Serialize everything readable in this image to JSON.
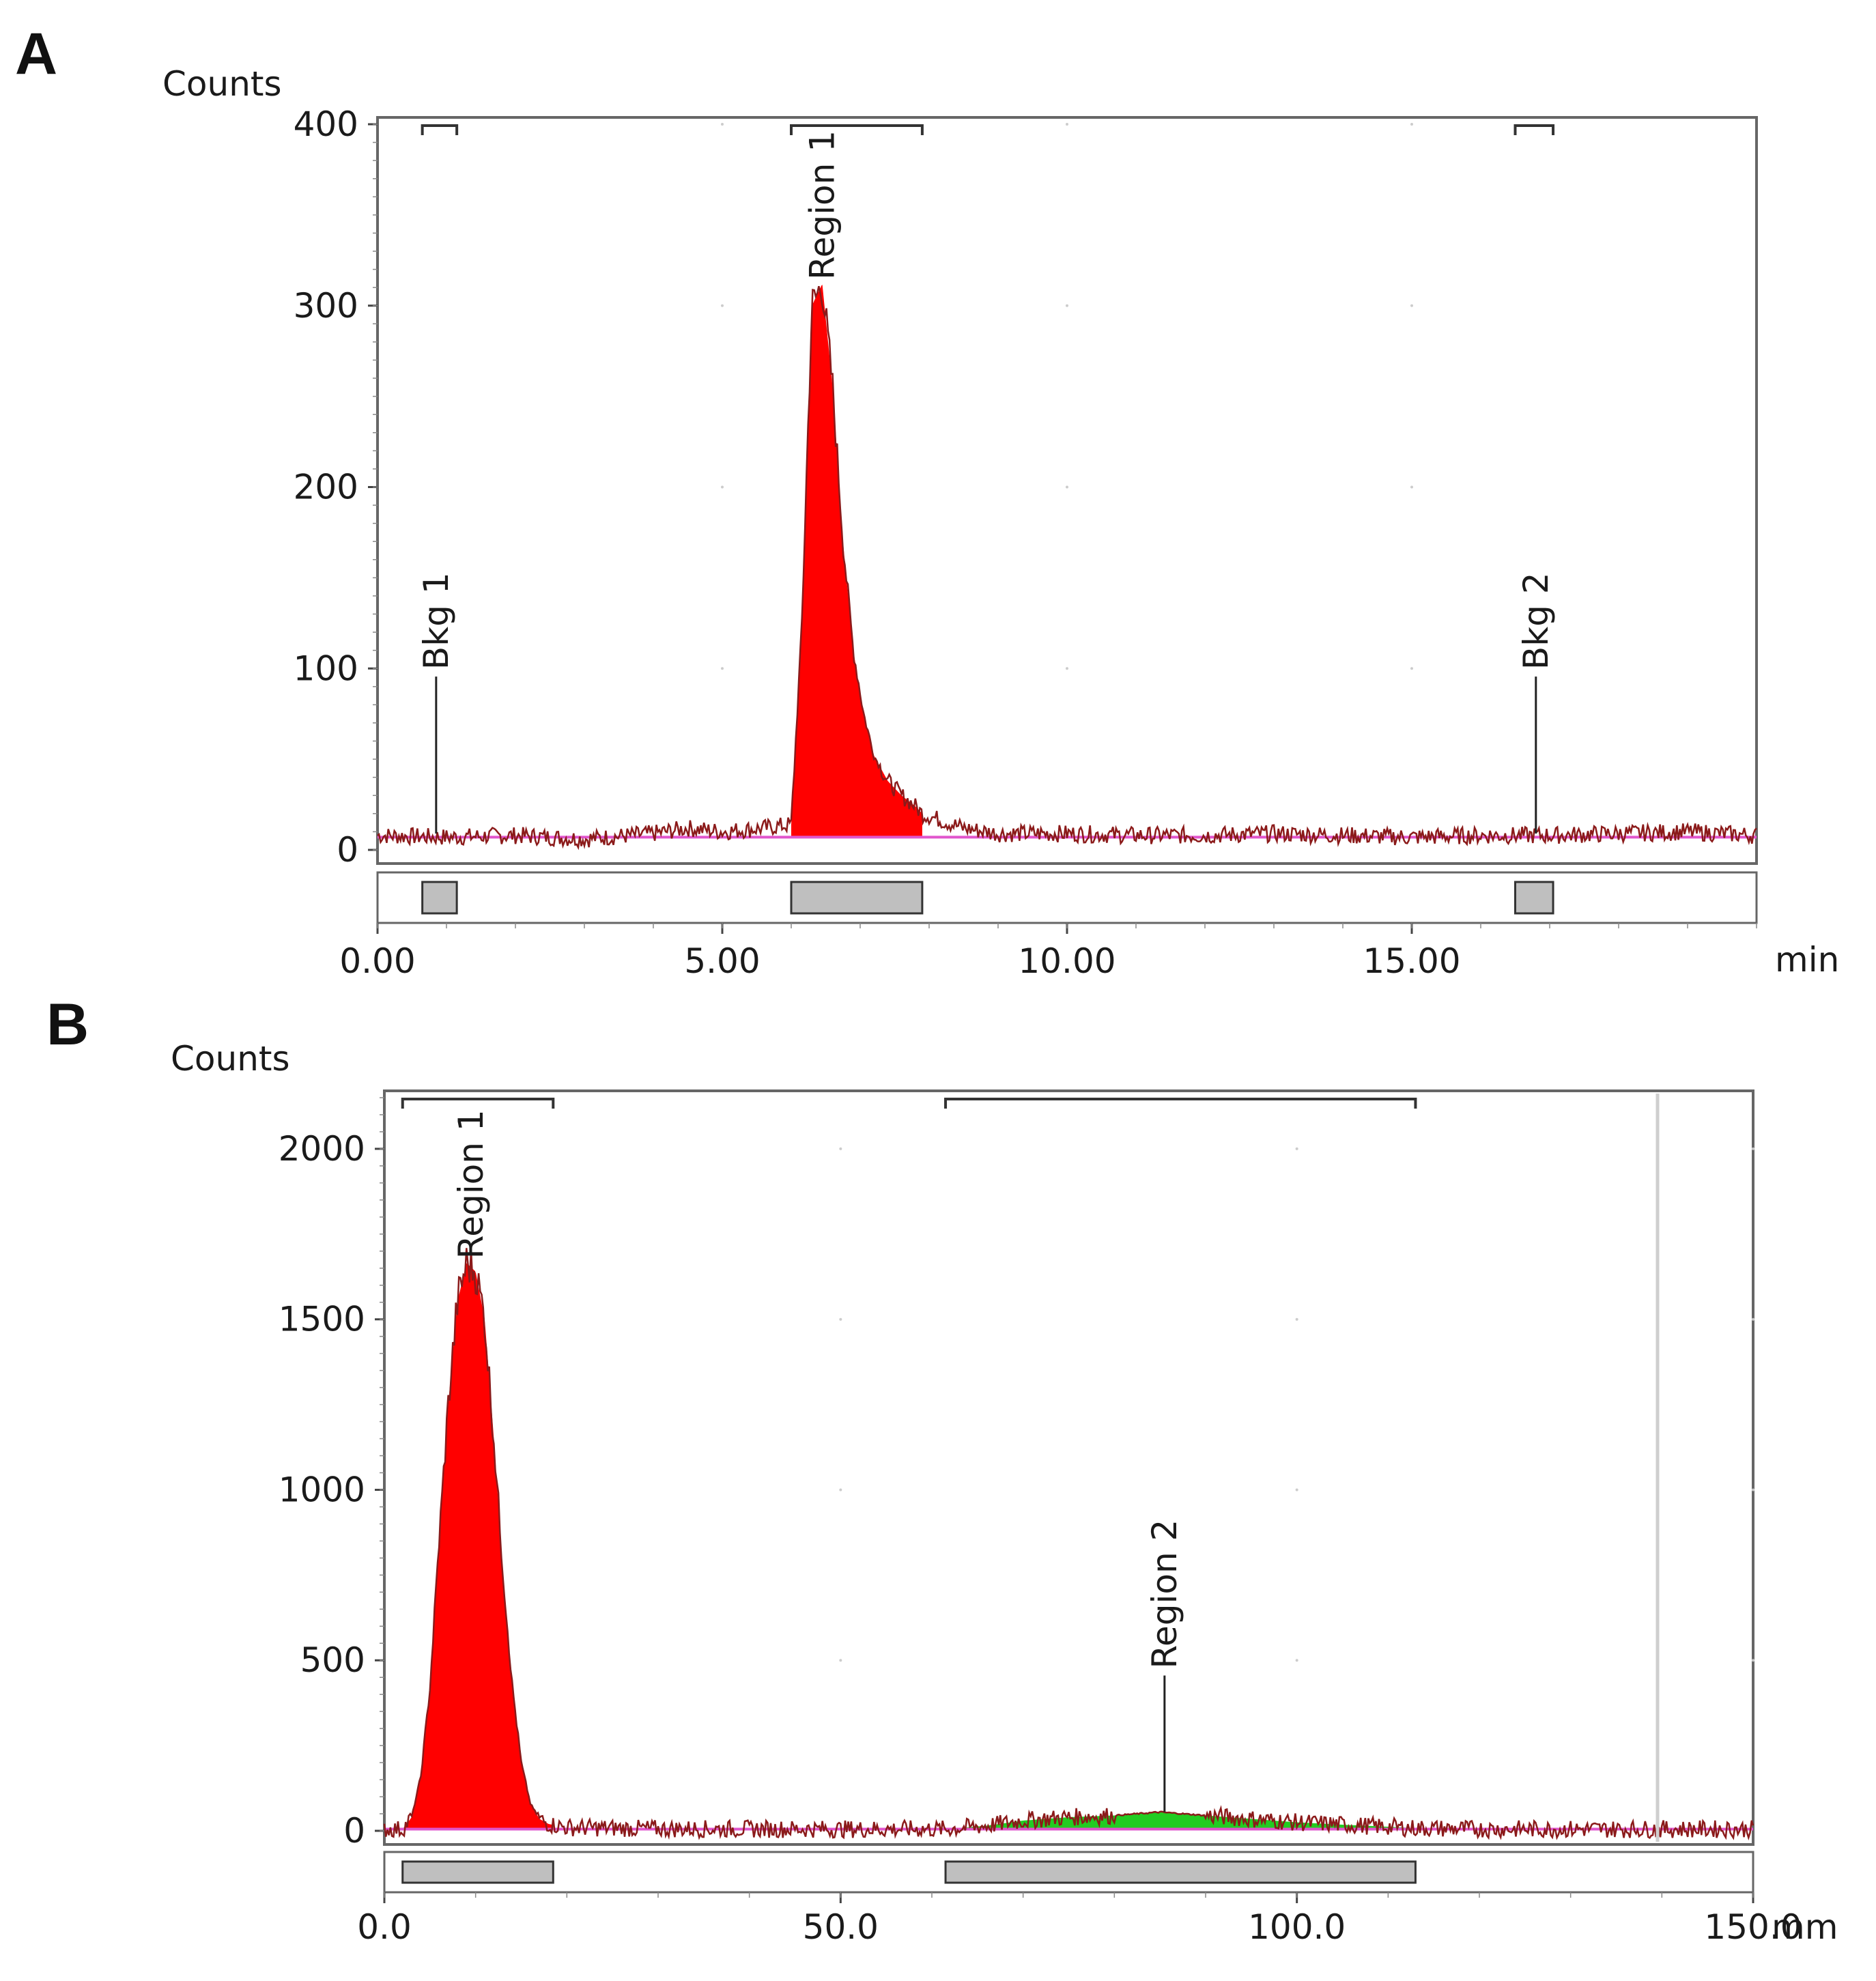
{
  "panels": [
    {
      "letter": "A"
    },
    {
      "letter": "B"
    }
  ],
  "chart_data": [
    {
      "type": "area",
      "panel": "A",
      "title": "",
      "ylabel": "Counts",
      "xlabel": "min",
      "xlim": [
        0,
        20
      ],
      "ylim": [
        0,
        400
      ],
      "x_ticks": [
        0,
        5,
        10,
        15
      ],
      "x_tick_labels": [
        "0.00",
        "5.00",
        "10.00",
        "15.00"
      ],
      "y_ticks": [
        0,
        100,
        200,
        300,
        400
      ],
      "y_tick_labels": [
        "0",
        "100",
        "200",
        "300",
        "400"
      ],
      "baseline": 7,
      "regions": [
        {
          "name": "Region 1",
          "start": 6.0,
          "end": 7.9,
          "color": "#ff0000",
          "label_x": 6.45,
          "peak": 312
        }
      ],
      "background_markers": [
        {
          "name": "Bkg 1",
          "start": 0.65,
          "end": 1.15,
          "label_x": 0.85
        },
        {
          "name": "Bkg 2",
          "start": 16.5,
          "end": 17.05,
          "label_x": 16.8
        }
      ],
      "series": [
        {
          "name": "trace",
          "color": "#8b1a1a",
          "x": [
            0,
            1,
            2,
            3,
            4,
            4.5,
            5,
            5.6,
            6.0,
            6.15,
            6.3,
            6.45,
            6.6,
            6.75,
            6.9,
            7.05,
            7.2,
            7.4,
            7.6,
            7.8,
            7.9,
            8.5,
            9,
            10,
            11,
            12,
            13,
            14,
            15,
            16,
            17,
            18,
            19,
            20
          ],
          "y": [
            8,
            7,
            8,
            6,
            9,
            12,
            10,
            12,
            14,
            120,
            300,
            312,
            255,
            170,
            110,
            75,
            52,
            38,
            30,
            24,
            20,
            12,
            9,
            9,
            8,
            8,
            9,
            8,
            7,
            8,
            8,
            9,
            10,
            8
          ]
        }
      ]
    },
    {
      "type": "area",
      "panel": "B",
      "title": "",
      "ylabel": "Counts",
      "xlabel": "mm",
      "xlim": [
        0,
        150
      ],
      "ylim": [
        0,
        2150
      ],
      "x_ticks": [
        0,
        50,
        100,
        150
      ],
      "x_tick_labels": [
        "0.0",
        "50.0",
        "100.0",
        "150.0"
      ],
      "y_ticks": [
        0,
        500,
        1000,
        1500,
        2000
      ],
      "y_tick_labels": [
        "0",
        "500",
        "1000",
        "1500",
        "2000"
      ],
      "baseline": 5,
      "regions": [
        {
          "name": "Region 1",
          "start": 2.0,
          "end": 18.5,
          "color": "#ff0000",
          "label_x": 9.5,
          "peak": 1665
        },
        {
          "name": "Region 2",
          "start": 61.5,
          "end": 113.0,
          "color": "#22cc22",
          "label_x": 85.5,
          "peak": 55
        }
      ],
      "background_markers": [],
      "series": [
        {
          "name": "trace",
          "color": "#8b1a1a",
          "x": [
            0,
            2,
            3,
            4,
            5,
            6,
            7,
            8,
            9,
            10,
            11,
            12,
            13,
            14,
            15,
            16,
            17,
            18,
            20,
            30,
            50,
            61.5,
            66,
            70,
            75,
            80,
            85,
            90,
            95,
            100,
            105,
            110,
            113,
            120,
            150
          ],
          "y": [
            5,
            5,
            40,
            160,
            420,
            850,
            1250,
            1550,
            1665,
            1640,
            1500,
            1150,
            760,
            430,
            200,
            80,
            35,
            20,
            10,
            6,
            5,
            5,
            15,
            30,
            40,
            45,
            55,
            45,
            35,
            25,
            18,
            12,
            8,
            5,
            5
          ]
        }
      ]
    }
  ]
}
